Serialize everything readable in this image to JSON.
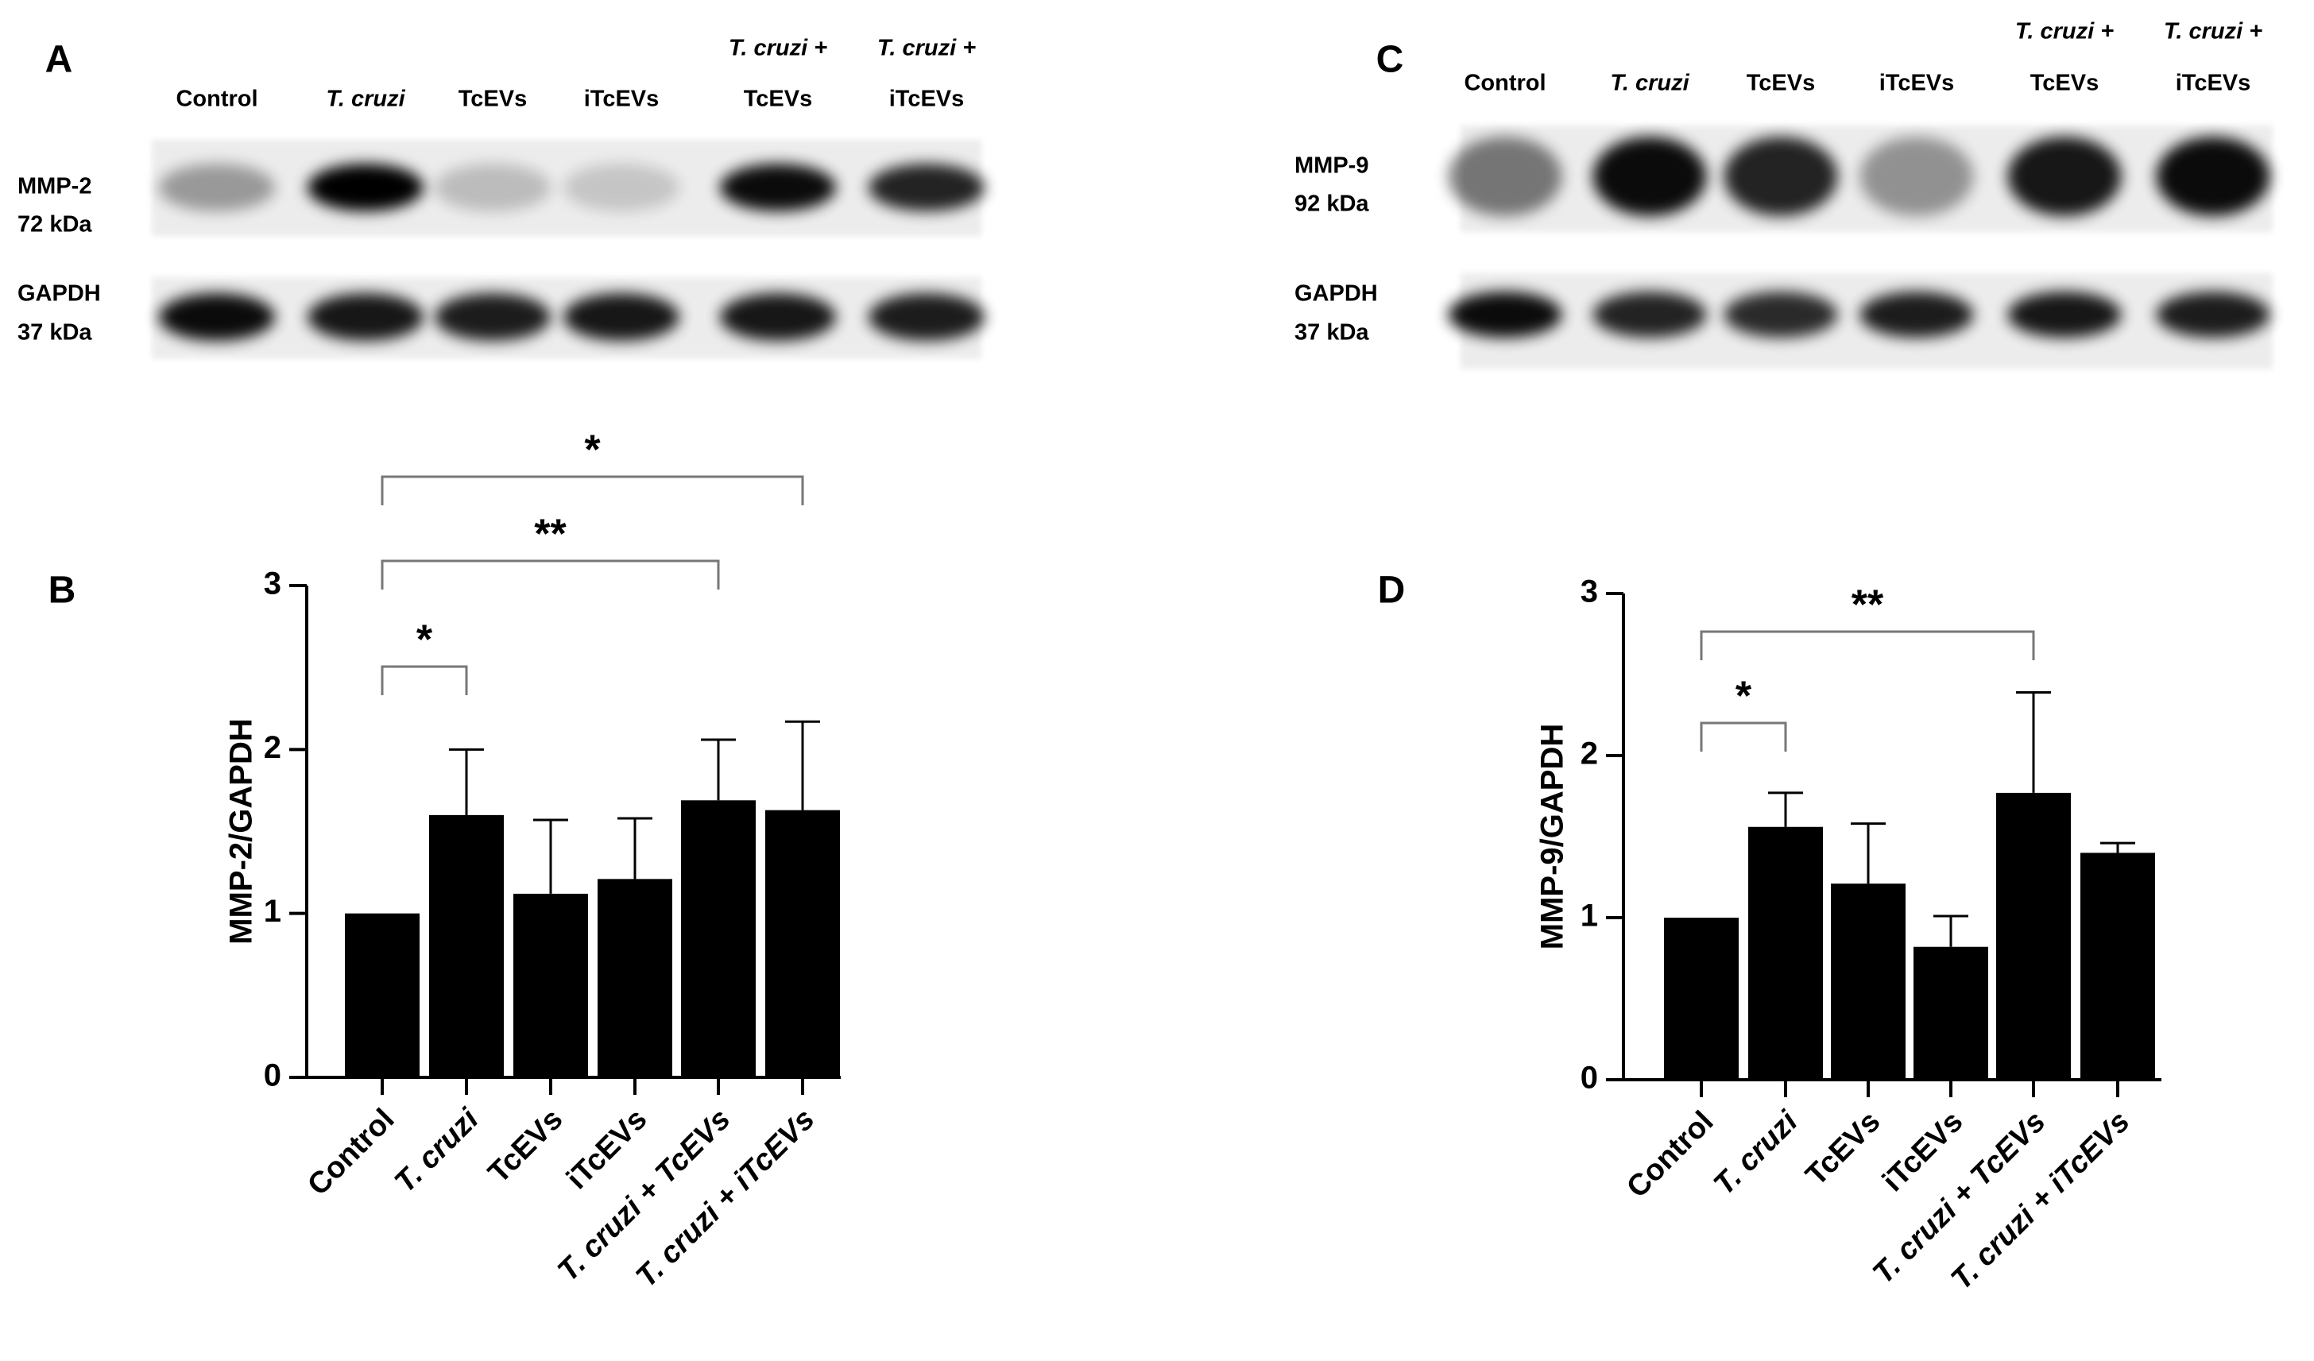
{
  "blots": [
    {
      "panel": "A",
      "lanes": [
        [
          "Control"
        ],
        [
          "T. cruzi"
        ],
        [
          "TcEVs"
        ],
        [
          "iTcEVs"
        ],
        [
          "T. cruzi +",
          "TcEVs"
        ],
        [
          "T. cruzi +",
          "iTcEVs"
        ]
      ],
      "rows": [
        [
          "MMP-2",
          "72 kDa"
        ],
        [
          "GAPDH",
          "37 kDa"
        ]
      ]
    },
    {
      "panel": "C",
      "lanes": [
        [
          "Control"
        ],
        [
          "T. cruzi"
        ],
        [
          "TcEVs"
        ],
        [
          "iTcEVs"
        ],
        [
          "T. cruzi +",
          "TcEVs"
        ],
        [
          "T. cruzi +",
          "iTcEVs"
        ]
      ],
      "rows": [
        [
          "MMP-9",
          "92 kDa"
        ],
        [
          "GAPDH",
          "37 kDa"
        ]
      ]
    }
  ],
  "chart_data": [
    {
      "type": "bar",
      "panel": "B",
      "y_label": "MMP-2/GAPDH",
      "categories": [
        "Control",
        "T. cruzi",
        "TcEVs",
        "iTcEVs",
        "T. cruzi + TcEVs",
        "T. cruzi + iTcEVs"
      ],
      "values": [
        1.0,
        1.6,
        1.12,
        1.21,
        1.69,
        1.63
      ],
      "errors": [
        null,
        0.4,
        0.45,
        0.37,
        0.37,
        0.54
      ],
      "color": "#000000",
      "ylim": [
        0,
        3
      ],
      "yticks": [
        0,
        1,
        2,
        3
      ],
      "significance": [
        {
          "from": "Control",
          "to": "T. cruzi",
          "text": "*"
        },
        {
          "from": "Control",
          "to": "T. cruzi + TcEVs",
          "text": "**"
        },
        {
          "from": "Control",
          "to": "T. cruzi + iTcEVs",
          "text": "*"
        }
      ]
    },
    {
      "type": "bar",
      "panel": "D",
      "y_label": "MMP-9/GAPDH",
      "categories": [
        "Control",
        "T. cruzi",
        "TcEVs",
        "iTcEVs",
        "T. cruzi + TcEVs",
        "T. cruzi + iTcEVs"
      ],
      "values": [
        1.0,
        1.56,
        1.21,
        0.82,
        1.77,
        1.4
      ],
      "errors": [
        null,
        0.21,
        0.37,
        0.19,
        0.62,
        0.06
      ],
      "color": "#000000",
      "ylim": [
        0,
        3
      ],
      "yticks": [
        0,
        1,
        2,
        3
      ],
      "significance": [
        {
          "from": "Control",
          "to": "T. cruzi",
          "text": "*"
        },
        {
          "from": "Control",
          "to": "T. cruzi + TcEVs",
          "text": "**"
        }
      ]
    }
  ]
}
